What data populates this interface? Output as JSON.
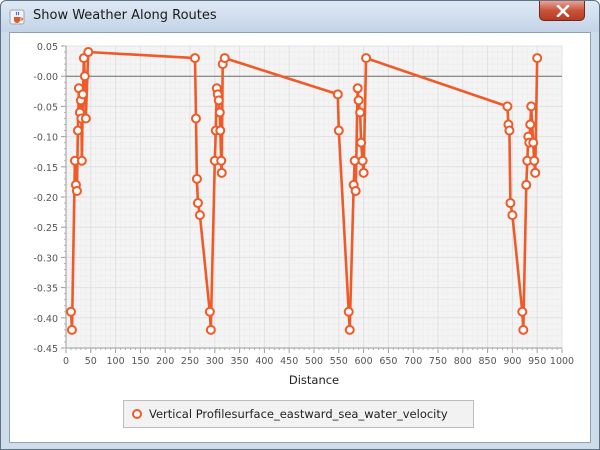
{
  "window": {
    "title": "Show Weather Along Routes",
    "app_icon": "java-cup-icon",
    "close_icon": "close-x-icon"
  },
  "colors": {
    "series": "#f05a28",
    "plot_background": "#f4f4f4",
    "grid": "#e2e2e2",
    "zero_line": "#6e6e6e"
  },
  "chart_data": {
    "type": "line",
    "title": "",
    "xlabel": "Distance",
    "ylabel": "",
    "xlim": [
      0,
      1000
    ],
    "ylim": [
      -0.45,
      0.05
    ],
    "xticks": [
      "0",
      "50",
      "100",
      "150",
      "200",
      "250",
      "300",
      "350",
      "400",
      "450",
      "500",
      "550",
      "600",
      "650",
      "700",
      "750",
      "800",
      "850",
      "900",
      "950",
      "1000"
    ],
    "yticks": [
      "0.05",
      "-0.00",
      "-0.05",
      "-0.10",
      "-0.15",
      "-0.20",
      "-0.25",
      "-0.30",
      "-0.35",
      "-0.40",
      "-0.45"
    ],
    "grid": true,
    "legend_position": "bottom",
    "series": [
      {
        "name": "Vertical Profilesurface_eastward_sea_water_velocity",
        "points": [
          [
            10,
            -0.39
          ],
          [
            12,
            -0.42
          ],
          [
            18,
            -0.14
          ],
          [
            20,
            -0.18
          ],
          [
            22,
            -0.19
          ],
          [
            24,
            -0.09
          ],
          [
            26,
            -0.02
          ],
          [
            28,
            -0.06
          ],
          [
            30,
            -0.04
          ],
          [
            31,
            -0.07
          ],
          [
            32,
            -0.14
          ],
          [
            34,
            -0.03
          ],
          [
            36,
            0.03
          ],
          [
            38,
            0.0
          ],
          [
            40,
            -0.07
          ],
          [
            45,
            0.04
          ],
          [
            260,
            0.03
          ],
          [
            262,
            -0.07
          ],
          [
            264,
            -0.17
          ],
          [
            266,
            -0.21
          ],
          [
            270,
            -0.23
          ],
          [
            290,
            -0.39
          ],
          [
            292,
            -0.42
          ],
          [
            300,
            -0.14
          ],
          [
            302,
            -0.09
          ],
          [
            304,
            -0.02
          ],
          [
            306,
            -0.03
          ],
          [
            308,
            -0.04
          ],
          [
            310,
            -0.06
          ],
          [
            311,
            -0.09
          ],
          [
            313,
            -0.14
          ],
          [
            314,
            -0.16
          ],
          [
            316,
            0.02
          ],
          [
            320,
            0.03
          ],
          [
            548,
            -0.03
          ],
          [
            550,
            -0.09
          ],
          [
            570,
            -0.39
          ],
          [
            572,
            -0.42
          ],
          [
            580,
            -0.18
          ],
          [
            582,
            -0.14
          ],
          [
            584,
            -0.19
          ],
          [
            588,
            -0.02
          ],
          [
            590,
            -0.04
          ],
          [
            593,
            -0.06
          ],
          [
            595,
            -0.11
          ],
          [
            598,
            -0.14
          ],
          [
            600,
            -0.16
          ],
          [
            605,
            0.03
          ],
          [
            890,
            -0.05
          ],
          [
            892,
            -0.08
          ],
          [
            894,
            -0.09
          ],
          [
            896,
            -0.21
          ],
          [
            900,
            -0.23
          ],
          [
            920,
            -0.39
          ],
          [
            922,
            -0.42
          ],
          [
            928,
            -0.18
          ],
          [
            930,
            -0.14
          ],
          [
            932,
            -0.1
          ],
          [
            934,
            -0.11
          ],
          [
            936,
            -0.08
          ],
          [
            938,
            -0.05
          ],
          [
            942,
            -0.11
          ],
          [
            944,
            -0.14
          ],
          [
            946,
            -0.16
          ],
          [
            950,
            0.03
          ]
        ]
      }
    ]
  }
}
